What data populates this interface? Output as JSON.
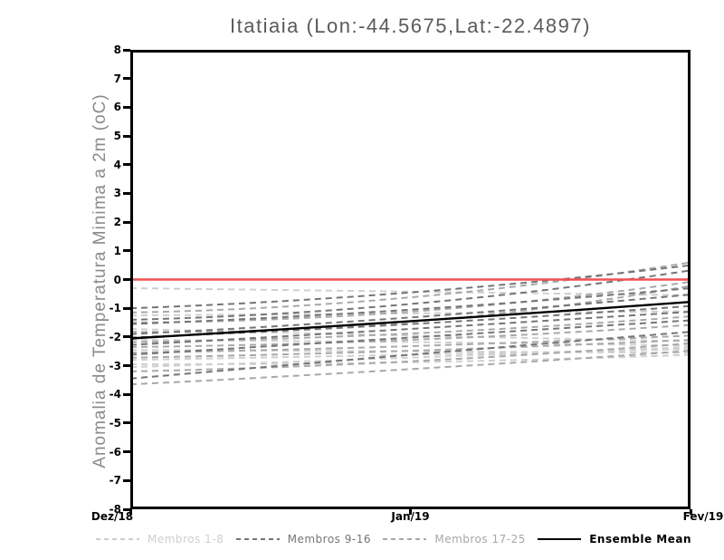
{
  "chart_data": {
    "type": "line",
    "title": "Itatiaia (Lon:-44.5675,Lat:-22.4897)",
    "ylabel": "Anomalia de Temperatura Minima a 2m (oC)",
    "xlabel": "",
    "ylim": [
      -8,
      8
    ],
    "y_ticks": [
      8,
      7,
      6,
      5,
      4,
      3,
      2,
      1,
      0,
      -1,
      -2,
      -3,
      -4,
      -5,
      -6,
      -7,
      -8
    ],
    "x_tick_labels": [
      "Dez/18",
      "Jan/19",
      "Fev/19"
    ],
    "x": [
      0,
      1,
      2
    ],
    "grid": false,
    "legend_position": "bottom",
    "frame_color": "#000000",
    "zero_line": {
      "y": 0,
      "color": "#f25050"
    },
    "groups": [
      {
        "name": "Membros 1-8",
        "color": "#cfcfcf",
        "style": "dashed",
        "series": [
          [
            -0.3,
            -0.42,
            -0.55
          ],
          [
            -1.25,
            -1.18,
            -1.1
          ],
          [
            -1.72,
            -1.95,
            -2.15
          ],
          [
            -2.1,
            -2.18,
            -2.3
          ],
          [
            -2.45,
            -2.5,
            -2.55
          ],
          [
            -2.8,
            -2.62,
            -2.42
          ],
          [
            -2.95,
            -2.88,
            -2.62
          ],
          [
            -3.05,
            -2.72,
            -2.35
          ]
        ]
      },
      {
        "name": "Membros 9-16",
        "color": "#757575",
        "style": "dashed",
        "series": [
          [
            -1.0,
            -0.45,
            0.5
          ],
          [
            -1.4,
            -0.85,
            0.32
          ],
          [
            -1.55,
            -1.05,
            -0.3
          ],
          [
            -1.9,
            -1.32,
            -0.52
          ],
          [
            -2.02,
            -1.55,
            -0.92
          ],
          [
            -2.28,
            -1.72,
            -1.12
          ],
          [
            -2.62,
            -2.02,
            -1.42
          ],
          [
            -3.45,
            -2.62,
            -1.82
          ]
        ]
      },
      {
        "name": "Membros 17-25",
        "color": "#a8a8a8",
        "style": "dashed",
        "series": [
          [
            -1.15,
            -0.62,
            0.6
          ],
          [
            -1.5,
            -1.12,
            -0.08
          ],
          [
            -1.82,
            -1.48,
            -0.22
          ],
          [
            -2.18,
            -1.88,
            -1.28
          ],
          [
            -2.35,
            -2.1,
            -1.58
          ],
          [
            -2.55,
            -2.32,
            -1.95
          ],
          [
            -2.72,
            -2.48,
            -2.1
          ],
          [
            -3.2,
            -2.85,
            -2.22
          ],
          [
            -3.65,
            -3.12,
            -2.48
          ]
        ]
      },
      {
        "name": "Ensemble Mean",
        "color": "#000000",
        "style": "solid",
        "series": [
          [
            -2.05,
            -1.45,
            -0.78
          ]
        ]
      }
    ]
  }
}
